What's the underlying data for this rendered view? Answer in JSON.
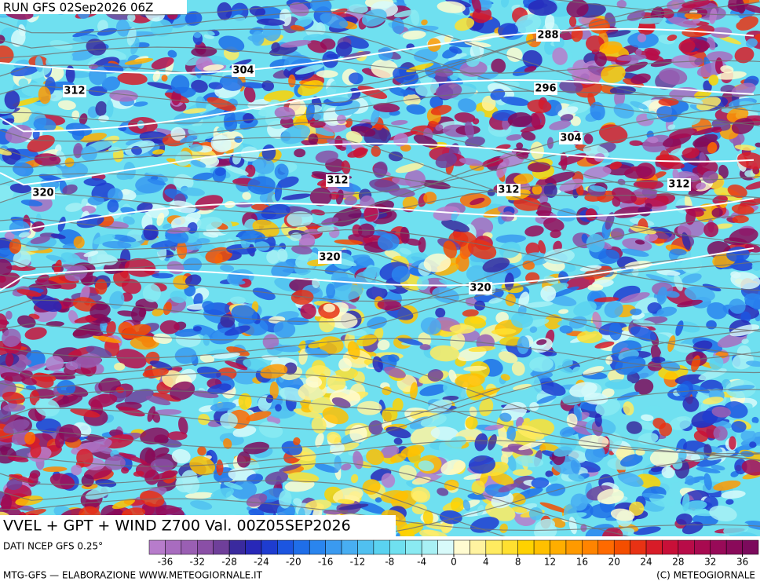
{
  "header": {
    "run": "RUN GFS 02Sep2026 06Z",
    "title": "VVEL + GPT + WIND Z700 Val. 00Z05SEP2026"
  },
  "contour_labels": [
    "288",
    "296",
    "304",
    "304",
    "312",
    "312",
    "312",
    "312",
    "320",
    "320",
    "320"
  ],
  "legend": {
    "source": "DATI NCEP GFS 0.25°",
    "range": [
      -38,
      38
    ],
    "ticks": [
      -36,
      -32,
      -28,
      -24,
      -20,
      -16,
      -12,
      -8,
      -4,
      0,
      4,
      8,
      12,
      16,
      20,
      24,
      28,
      32,
      36
    ],
    "colors": [
      "#b77ccb",
      "#a86cbf",
      "#9a5fb3",
      "#8a4fa6",
      "#6f3f9a",
      "#3a2a9e",
      "#2828b8",
      "#1e3cd0",
      "#1c55e0",
      "#1f6ee8",
      "#2a85ee",
      "#3a9af0",
      "#48aef2",
      "#50c0f0",
      "#5ad2f0",
      "#6fe0f0",
      "#8aeaf2",
      "#a8f0f4",
      "#d8fafa",
      "#fffbd0",
      "#fff3a0",
      "#ffeb60",
      "#ffe030",
      "#ffd200",
      "#ffc000",
      "#ffae00",
      "#ff9a00",
      "#ff8400",
      "#ff6a00",
      "#f44e00",
      "#e83214",
      "#d81c28",
      "#c81038",
      "#b80c48",
      "#a80a50",
      "#980a58",
      "#8a0a5a",
      "#7c0a5c"
    ]
  },
  "footer": {
    "left": "MTG-GFS — ELABORAZIONE WWW.METEOGIORNALE.IT",
    "right": "(C) METEOGIORNALE"
  }
}
